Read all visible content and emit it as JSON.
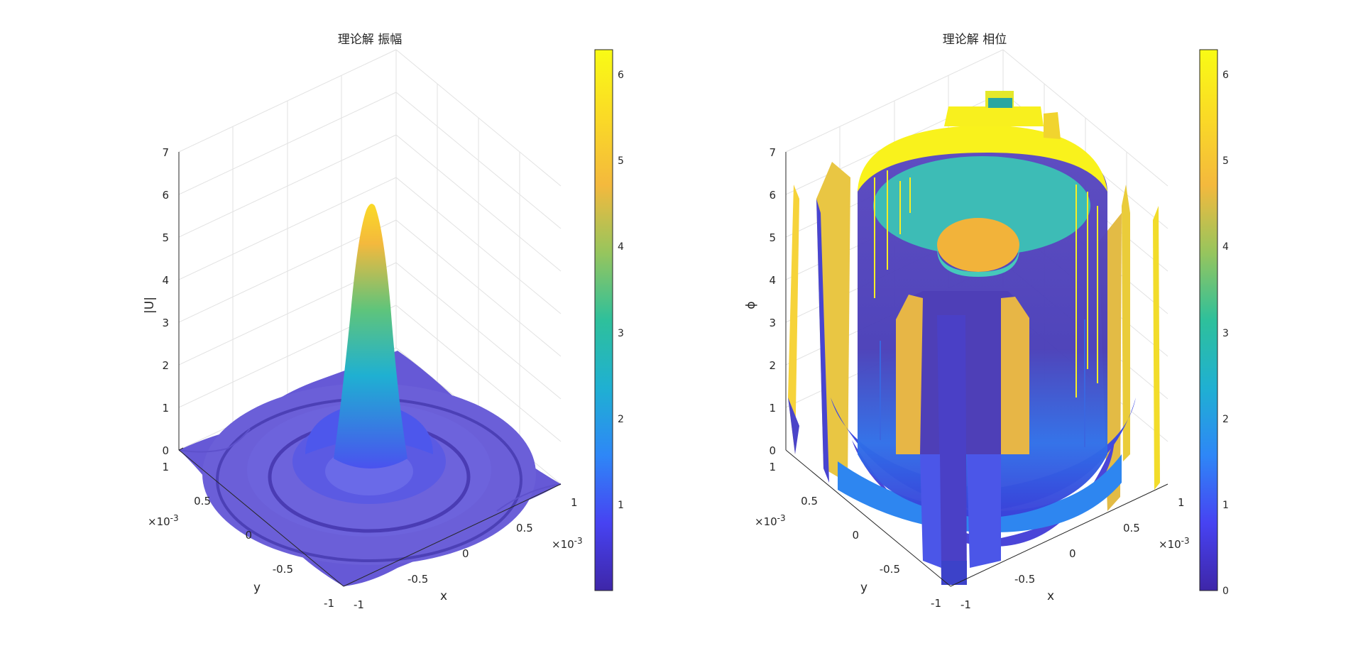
{
  "colors": {
    "parula_stops": [
      "#3e26a8",
      "#4743f2",
      "#2e87f7",
      "#1fb0d2",
      "#2ec09b",
      "#97c55d",
      "#f4b93d",
      "#fada26",
      "#f9fb15"
    ],
    "grid": "#e6e6e6",
    "axis": "#262626"
  },
  "chart_data": [
    {
      "type": "surface",
      "title": "理论解 振幅",
      "xlabel": "x",
      "ylabel": "y",
      "zlabel": "|U|",
      "x_range": [
        -0.001,
        0.001
      ],
      "y_range": [
        -0.001,
        0.001
      ],
      "zlim": [
        0,
        7
      ],
      "x_ticks": [
        "-1",
        "-0.5",
        "0",
        "0.5",
        "1"
      ],
      "y_ticks": [
        "-1",
        "-0.5",
        "0",
        "0.5",
        "1"
      ],
      "z_ticks": [
        "0",
        "1",
        "2",
        "3",
        "4",
        "5",
        "6",
        "7"
      ],
      "x_exponent": "×10-3",
      "y_exponent": "×10-3",
      "peak_value": 5.8,
      "colorbar": {
        "range": [
          0,
          6.28
        ],
        "ticks": [
          "1",
          "2",
          "3",
          "4",
          "5",
          "6"
        ]
      },
      "grid": true
    },
    {
      "type": "surface",
      "title": "理论解 相位",
      "xlabel": "x",
      "ylabel": "y",
      "zlabel": "ϕ",
      "x_range": [
        -0.001,
        0.001
      ],
      "y_range": [
        -0.001,
        0.001
      ],
      "zlim": [
        0,
        7
      ],
      "x_ticks": [
        "-1",
        "-0.5",
        "0",
        "0.5",
        "1"
      ],
      "y_ticks": [
        "-1",
        "-0.5",
        "0",
        "0.5",
        "1"
      ],
      "z_ticks": [
        "0",
        "1",
        "2",
        "3",
        "4",
        "5",
        "6",
        "7"
      ],
      "x_exponent": "×10-3",
      "y_exponent": "×10-3",
      "colorbar": {
        "range": [
          0,
          6.28
        ],
        "ticks": [
          "0",
          "1",
          "2",
          "3",
          "4",
          "5",
          "6"
        ]
      },
      "grid": true
    }
  ]
}
